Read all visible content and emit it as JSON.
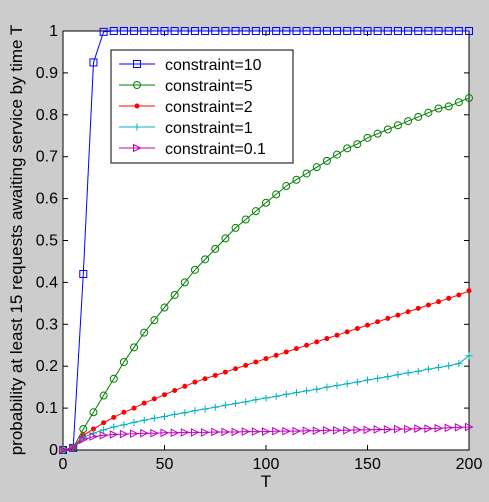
{
  "chart_data": {
    "type": "line",
    "xlabel": "T",
    "ylabel": "probability at least 15 requests awaiting service by time T",
    "xlim": [
      0,
      200
    ],
    "ylim": [
      0,
      1
    ],
    "x_ticks": [
      0,
      50,
      100,
      150,
      200
    ],
    "y_ticks": [
      0,
      0.1,
      0.2,
      0.3,
      0.4,
      0.5,
      0.6,
      0.7,
      0.8,
      0.9,
      1
    ],
    "x_tick_labels": [
      "0",
      "50",
      "100",
      "150",
      "200"
    ],
    "y_tick_labels": [
      "0",
      "0.1",
      "0.2",
      "0.3",
      "0.4",
      "0.5",
      "0.6",
      "0.7",
      "0.8",
      "0.9",
      "1"
    ],
    "grid": false,
    "legend_position": "top-left",
    "series": [
      {
        "name": "constraint=10",
        "color": "#0000ff",
        "marker": "square",
        "x": [
          0,
          5,
          10,
          15,
          20,
          25,
          30,
          35,
          40,
          45,
          50,
          55,
          60,
          65,
          70,
          75,
          80,
          85,
          90,
          95,
          100,
          105,
          110,
          115,
          120,
          125,
          130,
          135,
          140,
          145,
          150,
          155,
          160,
          165,
          170,
          175,
          180,
          185,
          190,
          195,
          200
        ],
        "y": [
          0,
          0.005,
          0.42,
          0.925,
          0.998,
          1,
          1,
          1,
          1,
          1,
          1,
          1,
          1,
          1,
          1,
          1,
          1,
          1,
          1,
          1,
          1,
          1,
          1,
          1,
          1,
          1,
          1,
          1,
          1,
          1,
          1,
          1,
          1,
          1,
          1,
          1,
          1,
          1,
          1,
          1,
          1
        ]
      },
      {
        "name": "constraint=5",
        "color": "#008000",
        "marker": "circle",
        "x": [
          0,
          5,
          10,
          15,
          20,
          25,
          30,
          35,
          40,
          45,
          50,
          55,
          60,
          65,
          70,
          75,
          80,
          85,
          90,
          95,
          100,
          105,
          110,
          115,
          120,
          125,
          130,
          135,
          140,
          145,
          150,
          155,
          160,
          165,
          170,
          175,
          180,
          185,
          190,
          195,
          200
        ],
        "y": [
          0,
          0.005,
          0.05,
          0.09,
          0.13,
          0.17,
          0.21,
          0.245,
          0.28,
          0.31,
          0.34,
          0.37,
          0.4,
          0.43,
          0.455,
          0.48,
          0.505,
          0.53,
          0.55,
          0.57,
          0.59,
          0.61,
          0.63,
          0.645,
          0.66,
          0.675,
          0.69,
          0.705,
          0.72,
          0.73,
          0.745,
          0.755,
          0.765,
          0.775,
          0.785,
          0.795,
          0.805,
          0.815,
          0.82,
          0.83,
          0.84
        ]
      },
      {
        "name": "constraint=2",
        "color": "#ff0000",
        "marker": "dot",
        "x": [
          0,
          5,
          10,
          15,
          20,
          25,
          30,
          35,
          40,
          45,
          50,
          55,
          60,
          65,
          70,
          75,
          80,
          85,
          90,
          95,
          100,
          105,
          110,
          115,
          120,
          125,
          130,
          135,
          140,
          145,
          150,
          155,
          160,
          165,
          170,
          175,
          180,
          185,
          190,
          195,
          200
        ],
        "y": [
          0,
          0.005,
          0.035,
          0.05,
          0.065,
          0.078,
          0.09,
          0.1,
          0.112,
          0.122,
          0.132,
          0.142,
          0.152,
          0.162,
          0.17,
          0.178,
          0.186,
          0.194,
          0.202,
          0.21,
          0.218,
          0.226,
          0.234,
          0.242,
          0.25,
          0.258,
          0.266,
          0.274,
          0.282,
          0.29,
          0.298,
          0.306,
          0.314,
          0.322,
          0.33,
          0.338,
          0.346,
          0.354,
          0.362,
          0.37,
          0.38
        ]
      },
      {
        "name": "constraint=1",
        "color": "#00b0c0",
        "marker": "plus",
        "x": [
          0,
          5,
          10,
          15,
          20,
          25,
          30,
          35,
          40,
          45,
          50,
          55,
          60,
          65,
          70,
          75,
          80,
          85,
          90,
          95,
          100,
          105,
          110,
          115,
          120,
          125,
          130,
          135,
          140,
          145,
          150,
          155,
          160,
          165,
          170,
          175,
          180,
          185,
          190,
          195,
          200
        ],
        "y": [
          0,
          0.005,
          0.03,
          0.04,
          0.048,
          0.055,
          0.06,
          0.066,
          0.071,
          0.076,
          0.08,
          0.085,
          0.089,
          0.094,
          0.098,
          0.102,
          0.107,
          0.111,
          0.115,
          0.12,
          0.124,
          0.128,
          0.133,
          0.137,
          0.141,
          0.145,
          0.15,
          0.154,
          0.158,
          0.162,
          0.167,
          0.171,
          0.175,
          0.18,
          0.184,
          0.188,
          0.193,
          0.197,
          0.201,
          0.206,
          0.225
        ]
      },
      {
        "name": "constraint=0.1",
        "color": "#c000c0",
        "marker": "triangle-right",
        "x": [
          0,
          5,
          10,
          15,
          20,
          25,
          30,
          35,
          40,
          45,
          50,
          55,
          60,
          65,
          70,
          75,
          80,
          85,
          90,
          95,
          100,
          105,
          110,
          115,
          120,
          125,
          130,
          135,
          140,
          145,
          150,
          155,
          160,
          165,
          170,
          175,
          180,
          185,
          190,
          195,
          200
        ],
        "y": [
          0,
          0.005,
          0.025,
          0.032,
          0.035,
          0.037,
          0.038,
          0.039,
          0.04,
          0.04,
          0.041,
          0.041,
          0.042,
          0.042,
          0.042,
          0.043,
          0.043,
          0.043,
          0.044,
          0.044,
          0.044,
          0.045,
          0.045,
          0.045,
          0.046,
          0.046,
          0.047,
          0.047,
          0.047,
          0.048,
          0.048,
          0.049,
          0.049,
          0.05,
          0.05,
          0.051,
          0.051,
          0.052,
          0.053,
          0.054,
          0.055
        ]
      }
    ]
  }
}
